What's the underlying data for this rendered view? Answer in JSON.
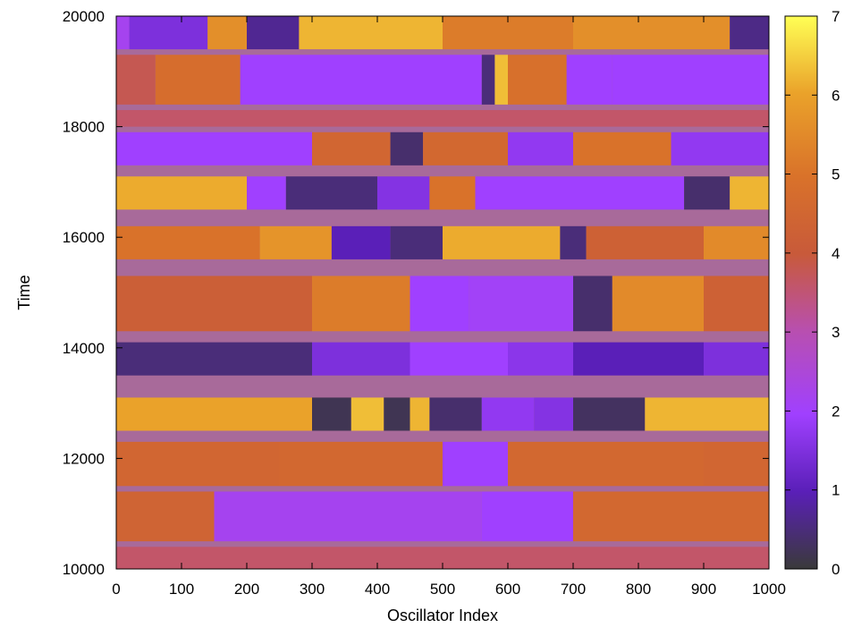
{
  "chart_data": {
    "type": "heatmap",
    "title": "",
    "xlabel": "Oscillator Index",
    "ylabel": "Time",
    "xlim": [
      0,
      1000
    ],
    "ylim": [
      10000,
      20000
    ],
    "x_ticks": [
      0,
      100,
      200,
      300,
      400,
      500,
      600,
      700,
      800,
      900,
      1000
    ],
    "y_ticks": [
      10000,
      12000,
      14000,
      16000,
      18000,
      20000
    ],
    "colorbar": {
      "range": [
        0,
        7
      ],
      "ticks": [
        0,
        1,
        2,
        3,
        4,
        5,
        6,
        7
      ],
      "colormap": [
        "#3a3a3a",
        "#5a1fb8",
        "#a040ff",
        "#b84fb0",
        "#c85a3a",
        "#d9722a",
        "#eaa22a",
        "#ffff55"
      ]
    },
    "bands": [
      {
        "t0": 19400,
        "t1": 20000,
        "segments": [
          [
            0,
            20,
            2.2
          ],
          [
            20,
            140,
            1.5
          ],
          [
            140,
            200,
            5.6
          ],
          [
            200,
            280,
            0.7
          ],
          [
            280,
            500,
            6.2
          ],
          [
            500,
            700,
            5.2
          ],
          [
            700,
            940,
            5.6
          ],
          [
            940,
            1000,
            0.6
          ]
        ]
      },
      {
        "t0": 18400,
        "t1": 19300,
        "segments": [
          [
            0,
            60,
            3.8
          ],
          [
            60,
            190,
            4.8
          ],
          [
            190,
            560,
            2.0
          ],
          [
            560,
            580,
            0.5
          ],
          [
            580,
            600,
            6.3
          ],
          [
            600,
            690,
            4.9
          ],
          [
            690,
            760,
            2.0
          ],
          [
            760,
            1000,
            2.0
          ]
        ]
      },
      {
        "t0": 18000,
        "t1": 18300,
        "segments": [
          [
            0,
            1000,
            3.6
          ]
        ]
      },
      {
        "t0": 17300,
        "t1": 17900,
        "segments": [
          [
            0,
            300,
            2.0
          ],
          [
            300,
            420,
            4.5
          ],
          [
            420,
            470,
            0.4
          ],
          [
            470,
            600,
            4.6
          ],
          [
            600,
            700,
            1.8
          ],
          [
            700,
            850,
            5.0
          ],
          [
            850,
            1000,
            1.8
          ]
        ]
      },
      {
        "t0": 16500,
        "t1": 17100,
        "segments": [
          [
            0,
            200,
            6.1
          ],
          [
            200,
            260,
            2.0
          ],
          [
            260,
            400,
            0.5
          ],
          [
            400,
            480,
            1.6
          ],
          [
            480,
            550,
            5.0
          ],
          [
            550,
            700,
            2.0
          ],
          [
            700,
            870,
            2.0
          ],
          [
            870,
            940,
            0.4
          ],
          [
            940,
            1000,
            6.2
          ]
        ]
      },
      {
        "t0": 15600,
        "t1": 16200,
        "segments": [
          [
            0,
            220,
            5.0
          ],
          [
            220,
            330,
            5.7
          ],
          [
            330,
            420,
            1.0
          ],
          [
            420,
            500,
            0.5
          ],
          [
            500,
            680,
            6.1
          ],
          [
            680,
            720,
            0.5
          ],
          [
            720,
            900,
            4.3
          ],
          [
            900,
            1000,
            5.5
          ]
        ]
      },
      {
        "t0": 14300,
        "t1": 15300,
        "segments": [
          [
            0,
            300,
            4.2
          ],
          [
            300,
            450,
            5.2
          ],
          [
            450,
            540,
            2.0
          ],
          [
            540,
            700,
            2.1
          ],
          [
            700,
            760,
            0.4
          ],
          [
            760,
            900,
            5.5
          ],
          [
            900,
            1000,
            4.3
          ]
        ]
      },
      {
        "t0": 13500,
        "t1": 14100,
        "segments": [
          [
            0,
            300,
            0.5
          ],
          [
            300,
            450,
            1.5
          ],
          [
            450,
            600,
            2.0
          ],
          [
            600,
            700,
            1.7
          ],
          [
            700,
            900,
            1.0
          ],
          [
            900,
            1000,
            1.5
          ]
        ]
      },
      {
        "t0": 12500,
        "t1": 13100,
        "segments": [
          [
            0,
            300,
            6.0
          ],
          [
            300,
            360,
            0.2
          ],
          [
            360,
            410,
            6.3
          ],
          [
            410,
            450,
            0.2
          ],
          [
            450,
            480,
            6.2
          ],
          [
            480,
            560,
            0.4
          ],
          [
            560,
            640,
            1.8
          ],
          [
            640,
            700,
            1.6
          ],
          [
            700,
            810,
            0.3
          ],
          [
            810,
            1000,
            6.2
          ]
        ]
      },
      {
        "t0": 11500,
        "t1": 12300,
        "segments": [
          [
            0,
            250,
            4.5
          ],
          [
            250,
            500,
            4.6
          ],
          [
            500,
            600,
            2.0
          ],
          [
            600,
            900,
            4.6
          ],
          [
            900,
            1000,
            4.5
          ]
        ]
      },
      {
        "t0": 10500,
        "t1": 11400,
        "segments": [
          [
            0,
            150,
            4.4
          ],
          [
            150,
            560,
            2.2
          ],
          [
            560,
            700,
            2.0
          ],
          [
            700,
            1000,
            4.6
          ]
        ]
      },
      {
        "t0": 10000,
        "t1": 10400,
        "segments": [
          [
            0,
            1000,
            3.6
          ]
        ]
      }
    ]
  }
}
